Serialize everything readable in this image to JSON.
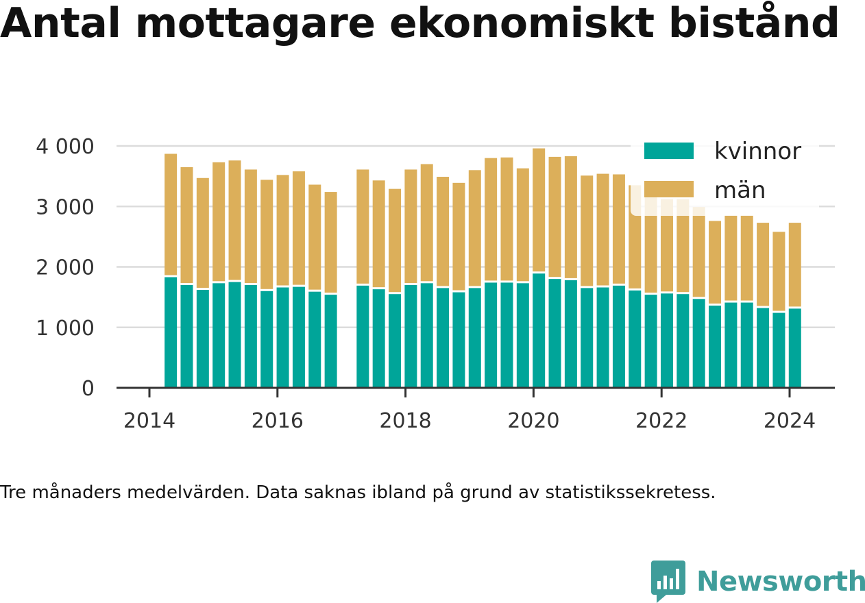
{
  "title": "Antal mottagare ekonomiskt bistånd",
  "caption": "Tre månaders medelvärden. Data saknas ibland på grund av statistikssekretess.",
  "brand": "Newsworthy",
  "chart_data": {
    "type": "bar",
    "stacked": true,
    "x": [
      "2014-05",
      "2014-08",
      "2014-11",
      "2015-02",
      "2015-05",
      "2015-08",
      "2015-11",
      "2016-02",
      "2016-05",
      "2016-08",
      "2016-11",
      "2017-05",
      "2017-08",
      "2017-11",
      "2018-02",
      "2018-05",
      "2018-08",
      "2018-11",
      "2019-02",
      "2019-05",
      "2019-08",
      "2019-11",
      "2020-02",
      "2020-05",
      "2020-08",
      "2020-11",
      "2021-02",
      "2021-05",
      "2021-08",
      "2021-11",
      "2022-02",
      "2022-05",
      "2022-08",
      "2022-11",
      "2023-02",
      "2023-05",
      "2023-08",
      "2023-11",
      "2024-02"
    ],
    "series": [
      {
        "name": "kvinnor",
        "color": "#00a599",
        "values": [
          1830,
          1700,
          1620,
          1730,
          1750,
          1700,
          1600,
          1660,
          1670,
          1590,
          1540,
          1690,
          1630,
          1550,
          1700,
          1730,
          1650,
          1580,
          1650,
          1740,
          1740,
          1730,
          1890,
          1800,
          1780,
          1650,
          1660,
          1690,
          1610,
          1540,
          1560,
          1550,
          1470,
          1360,
          1410,
          1410,
          1320,
          1240,
          1310
        ]
      },
      {
        "name": "män",
        "color": "#dcaf5a",
        "values": [
          2040,
          1950,
          1850,
          2000,
          2010,
          1910,
          1840,
          1860,
          1910,
          1770,
          1700,
          1920,
          1800,
          1740,
          1910,
          1970,
          1840,
          1810,
          1950,
          2060,
          2070,
          1900,
          2070,
          2020,
          2050,
          1860,
          1880,
          1840,
          1740,
          1610,
          1560,
          1570,
          1520,
          1400,
          1440,
          1440,
          1410,
          1340,
          1420
        ]
      }
    ],
    "xticks": [
      "2014",
      "2016",
      "2018",
      "2020",
      "2022",
      "2024"
    ],
    "yticks": [
      "0",
      "1 000",
      "2 000",
      "3 000",
      "4 000"
    ],
    "ylim": [
      0,
      4000
    ],
    "legend_position": "top-right",
    "grid": "horizontal"
  }
}
